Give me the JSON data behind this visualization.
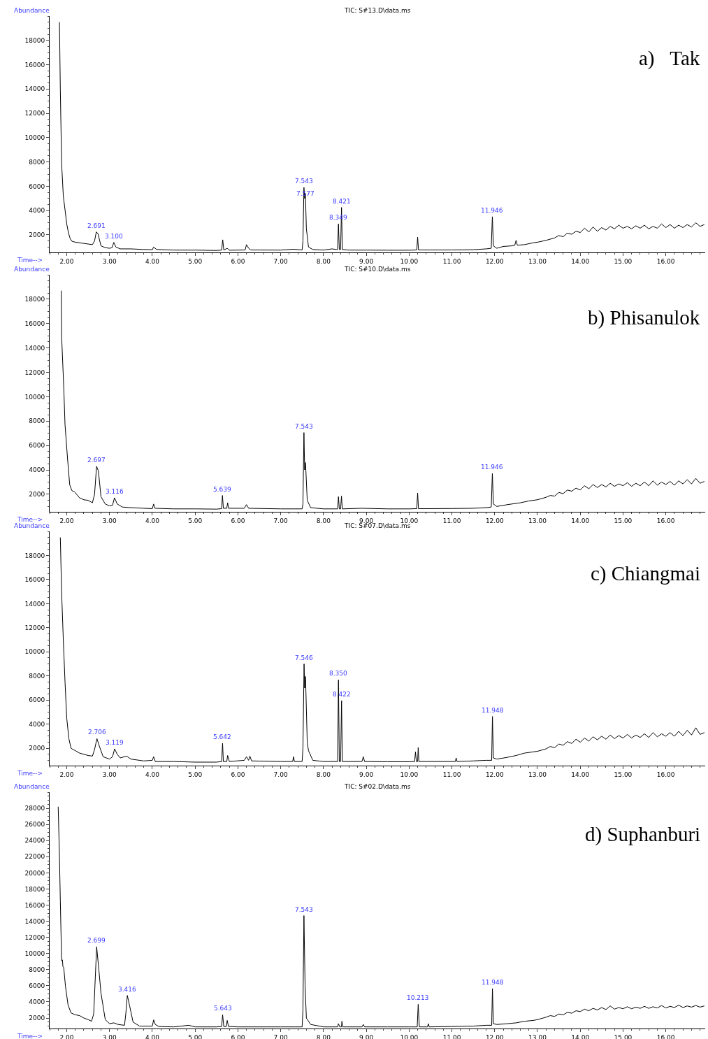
{
  "chart_data": [
    {
      "type": "line",
      "title": "TIC: S#13.D\\data.ms",
      "xlabel": "Time-->",
      "ylabel": "Abundance",
      "color": "#000000",
      "x": [
        1.83,
        1.85,
        1.88,
        1.92,
        1.96,
        2.0,
        2.04,
        2.08,
        2.12,
        2.2,
        2.3,
        2.4,
        2.5,
        2.6,
        2.65,
        2.691,
        2.73,
        2.8,
        2.9,
        3.0,
        3.06,
        3.1,
        3.15,
        3.25,
        3.5,
        3.8,
        4.0,
        4.03,
        4.1,
        4.5,
        5.0,
        5.5,
        5.62,
        5.645,
        5.67,
        5.75,
        5.8,
        6.17,
        6.2,
        6.25,
        6.3,
        7.0,
        7.3,
        7.5,
        7.52,
        7.543,
        7.56,
        7.577,
        7.6,
        7.65,
        7.75,
        8.0,
        8.2,
        8.3,
        8.33,
        8.349,
        8.37,
        8.4,
        8.421,
        8.44,
        8.6,
        9.0,
        9.5,
        10.0,
        10.18,
        10.2,
        10.22,
        10.5,
        11.0,
        11.5,
        11.8,
        11.92,
        11.946,
        11.97,
        12.05,
        12.2,
        12.4,
        12.47,
        12.5,
        12.53,
        12.7,
        12.9,
        13.0,
        13.2,
        13.4,
        13.5,
        13.6,
        13.7,
        13.8,
        13.9,
        14.0,
        14.1,
        14.2,
        14.3,
        14.4,
        14.5,
        14.6,
        14.7,
        14.8,
        14.9,
        15.0,
        15.1,
        15.2,
        15.3,
        15.4,
        15.5,
        15.6,
        15.7,
        15.8,
        15.9,
        16.0,
        16.1,
        16.2,
        16.3,
        16.4,
        16.5,
        16.6,
        16.7,
        16.8,
        16.9
      ],
      "values": [
        19500,
        14000,
        7900,
        5200,
        4070,
        2900,
        2170,
        1700,
        1480,
        1400,
        1350,
        1300,
        1250,
        1200,
        1500,
        2250,
        2100,
        1100,
        950,
        900,
        950,
        1380,
        1000,
        850,
        850,
        800,
        780,
        1000,
        800,
        750,
        750,
        720,
        750,
        1600,
        750,
        900,
        740,
        760,
        1200,
        900,
        760,
        750,
        820,
        760,
        1500,
        5900,
        5000,
        5400,
        2500,
        1000,
        800,
        750,
        850,
        800,
        800,
        2900,
        800,
        800,
        4260,
        800,
        750,
        750,
        740,
        740,
        760,
        1810,
        760,
        760,
        760,
        780,
        850,
        900,
        3500,
        1100,
        900,
        1050,
        1100,
        1150,
        1550,
        1150,
        1200,
        1350,
        1400,
        1550,
        1750,
        1950,
        1850,
        2150,
        2050,
        2300,
        2200,
        2550,
        2250,
        2650,
        2300,
        2600,
        2400,
        2700,
        2500,
        2800,
        2550,
        2700,
        2500,
        2750,
        2550,
        2800,
        2500,
        2700,
        2550,
        2900,
        2600,
        2850,
        2550,
        2800,
        2600,
        2850,
        2650,
        3000,
        2700,
        2850
      ],
      "xlim": [
        1.6,
        16.92
      ],
      "ylim": [
        560,
        20000
      ],
      "xticks": [
        {
          "value": 2,
          "label": "2.00"
        },
        {
          "value": 3,
          "label": "3.00"
        },
        {
          "value": 4,
          "label": "4.00"
        },
        {
          "value": 5,
          "label": "5.00"
        },
        {
          "value": 6,
          "label": "6.00"
        },
        {
          "value": 7,
          "label": "7.00"
        },
        {
          "value": 8,
          "label": "8.00"
        },
        {
          "value": 9,
          "label": "9.00"
        },
        {
          "value": 10,
          "label": "10.00"
        },
        {
          "value": 11,
          "label": "11.00"
        },
        {
          "value": 12,
          "label": "12.00"
        },
        {
          "value": 13,
          "label": "13.00"
        },
        {
          "value": 14,
          "label": "14.00"
        },
        {
          "value": 15,
          "label": "15.00"
        },
        {
          "value": 16,
          "label": "16.00"
        }
      ],
      "yticks": [
        2000,
        4000,
        6000,
        8000,
        10000,
        12000,
        14000,
        16000,
        18000
      ],
      "annotations": [
        "a)   Tak",
        {
          "text": "2.691",
          "x": 2.691,
          "y": 2250
        },
        {
          "text": "3.100",
          "x": 3.1,
          "y": 1380
        },
        {
          "text": "7.543",
          "x": 7.543,
          "y": 5900
        },
        {
          "text": "7.577",
          "x": 7.577,
          "y": 4900
        },
        {
          "text": "8.349",
          "x": 8.349,
          "y": 2900
        },
        {
          "text": "8.421",
          "x": 8.421,
          "y": 4260
        },
        {
          "text": "11.946",
          "x": 11.946,
          "y": 3500
        }
      ]
    },
    {
      "type": "line",
      "title": "TIC: S#10.D\\data.ms",
      "xlabel": "Time-->",
      "ylabel": "Abundance",
      "color": "#000000",
      "x": [
        1.87,
        1.88,
        1.93,
        1.96,
        2.02,
        2.07,
        2.12,
        2.18,
        2.3,
        2.4,
        2.5,
        2.6,
        2.65,
        2.697,
        2.74,
        2.8,
        2.9,
        3.0,
        3.07,
        3.116,
        3.18,
        3.3,
        3.5,
        3.8,
        4.0,
        4.03,
        4.06,
        4.5,
        5.0,
        5.5,
        5.62,
        5.639,
        5.66,
        5.74,
        5.76,
        5.78,
        6.15,
        6.2,
        6.25,
        7.0,
        7.5,
        7.52,
        7.543,
        7.56,
        7.58,
        7.62,
        7.7,
        8.0,
        8.33,
        8.35,
        8.37,
        8.4,
        8.42,
        8.44,
        8.9,
        9.5,
        10.0,
        10.18,
        10.2,
        10.22,
        10.5,
        11.0,
        11.5,
        11.8,
        11.92,
        11.946,
        11.97,
        12.05,
        12.3,
        12.6,
        12.8,
        13.0,
        13.2,
        13.3,
        13.4,
        13.5,
        13.6,
        13.7,
        13.8,
        13.9,
        14.0,
        14.1,
        14.2,
        14.3,
        14.4,
        14.5,
        14.6,
        14.7,
        14.8,
        14.9,
        15.0,
        15.1,
        15.2,
        15.3,
        15.4,
        15.5,
        15.6,
        15.7,
        15.8,
        15.9,
        16.0,
        16.1,
        16.2,
        16.3,
        16.4,
        16.5,
        16.6,
        16.7,
        16.8,
        16.9
      ],
      "values": [
        18700,
        15000,
        10800,
        7700,
        4860,
        2770,
        2300,
        2200,
        1700,
        1550,
        1500,
        1300,
        2000,
        4290,
        3900,
        1800,
        1200,
        1050,
        1100,
        1710,
        1200,
        950,
        900,
        850,
        820,
        1200,
        850,
        800,
        800,
        780,
        820,
        1900,
        850,
        850,
        1300,
        850,
        850,
        1150,
        850,
        800,
        800,
        1200,
        7060,
        4000,
        4600,
        1500,
        900,
        800,
        800,
        1800,
        800,
        800,
        1850,
        800,
        850,
        800,
        800,
        820,
        2100,
        820,
        820,
        830,
        850,
        900,
        950,
        3700,
        1200,
        1000,
        1150,
        1300,
        1450,
        1550,
        1750,
        1900,
        1850,
        2150,
        2050,
        2350,
        2250,
        2500,
        2350,
        2700,
        2450,
        2800,
        2550,
        2800,
        2600,
        2900,
        2650,
        2850,
        2700,
        2950,
        2650,
        2900,
        2700,
        3000,
        2700,
        3100,
        2750,
        3000,
        2800,
        3050,
        2750,
        3100,
        2850,
        3200,
        2850,
        3300,
        2900,
        3050
      ],
      "xlim": [
        1.6,
        16.92
      ],
      "ylim": [
        560,
        20000
      ],
      "xticks": [
        {
          "value": 2,
          "label": "2.00"
        },
        {
          "value": 3,
          "label": "3.00"
        },
        {
          "value": 4,
          "label": "4.00"
        },
        {
          "value": 5,
          "label": "5.00"
        },
        {
          "value": 6,
          "label": "6.00"
        },
        {
          "value": 7,
          "label": "7.00"
        },
        {
          "value": 8,
          "label": "8.00"
        },
        {
          "value": 9,
          "label": "9.00"
        },
        {
          "value": 10,
          "label": "10.00"
        },
        {
          "value": 11,
          "label": "11.00"
        },
        {
          "value": 12,
          "label": "12.00"
        },
        {
          "value": 13,
          "label": "13.00"
        },
        {
          "value": 14,
          "label": "14.00"
        },
        {
          "value": 15,
          "label": "15.00"
        },
        {
          "value": 16,
          "label": "16.00"
        }
      ],
      "yticks": [
        2000,
        4000,
        6000,
        8000,
        10000,
        12000,
        14000,
        16000,
        18000
      ],
      "annotations": [
        "b) Phisanulok",
        {
          "text": "2.697",
          "x": 2.697,
          "y": 4290
        },
        {
          "text": "3.116",
          "x": 3.116,
          "y": 1710
        },
        {
          "text": "5.639",
          "x": 5.639,
          "y": 1900
        },
        {
          "text": "7.543",
          "x": 7.543,
          "y": 7060
        },
        {
          "text": "11.946",
          "x": 11.946,
          "y": 3700
        }
      ]
    },
    {
      "type": "line",
      "title": "TIC: S#07.D\\data.ms",
      "xlabel": "Time-->",
      "ylabel": "Abundance",
      "color": "#000000",
      "x": [
        1.85,
        1.88,
        1.92,
        1.96,
        2.0,
        2.05,
        2.1,
        2.2,
        2.3,
        2.5,
        2.6,
        2.65,
        2.706,
        2.75,
        2.85,
        3.0,
        3.07,
        3.119,
        3.18,
        3.25,
        3.4,
        3.5,
        3.8,
        4.0,
        4.03,
        4.07,
        4.5,
        5.0,
        5.5,
        5.62,
        5.642,
        5.66,
        5.74,
        5.76,
        5.8,
        6.15,
        6.2,
        6.25,
        6.28,
        6.32,
        7.0,
        7.28,
        7.3,
        7.32,
        7.5,
        7.52,
        7.546,
        7.56,
        7.58,
        7.62,
        7.65,
        7.75,
        8.0,
        8.33,
        8.35,
        8.37,
        8.4,
        8.422,
        8.44,
        8.9,
        8.93,
        8.96,
        9.5,
        10.0,
        10.13,
        10.15,
        10.17,
        10.2,
        10.213,
        10.23,
        10.5,
        11.08,
        11.1,
        11.12,
        11.5,
        11.8,
        11.93,
        11.948,
        11.97,
        12.05,
        12.3,
        12.5,
        12.7,
        12.9,
        13.0,
        13.2,
        13.3,
        13.4,
        13.5,
        13.6,
        13.7,
        13.8,
        13.9,
        14.0,
        14.1,
        14.2,
        14.3,
        14.4,
        14.5,
        14.6,
        14.7,
        14.8,
        14.9,
        15.0,
        15.1,
        15.2,
        15.3,
        15.4,
        15.5,
        15.6,
        15.7,
        15.8,
        15.9,
        16.0,
        16.1,
        16.2,
        16.3,
        16.4,
        16.5,
        16.6,
        16.7,
        16.8,
        16.9
      ],
      "values": [
        19500,
        15000,
        11000,
        7500,
        4500,
        2800,
        2000,
        1800,
        1600,
        1400,
        1350,
        1900,
        2800,
        2300,
        1300,
        1100,
        1300,
        1950,
        1500,
        1200,
        1350,
        1100,
        950,
        1000,
        1300,
        900,
        900,
        850,
        850,
        900,
        2420,
        900,
        900,
        1400,
        900,
        1000,
        1300,
        1000,
        1350,
        950,
        900,
        900,
        1300,
        900,
        900,
        2000,
        9000,
        7000,
        7960,
        2500,
        1800,
        1000,
        900,
        900,
        7670,
        900,
        900,
        5950,
        900,
        900,
        1300,
        900,
        880,
        880,
        900,
        1700,
        900,
        900,
        2060,
        900,
        900,
        900,
        1200,
        900,
        950,
        1000,
        1000,
        4640,
        1200,
        1100,
        1250,
        1400,
        1600,
        1700,
        1750,
        1950,
        2150,
        2050,
        2350,
        2250,
        2550,
        2400,
        2750,
        2500,
        2850,
        2600,
        2950,
        2700,
        3000,
        2750,
        3100,
        2800,
        3050,
        2850,
        3150,
        2850,
        3100,
        2900,
        3200,
        2900,
        3300,
        2950,
        3200,
        3000,
        3300,
        3000,
        3400,
        3050,
        3500,
        3100,
        3700,
        3150,
        3300
      ],
      "xlim": [
        1.6,
        16.92
      ],
      "ylim": [
        560,
        20000
      ],
      "xticks": [
        {
          "value": 2,
          "label": "2.00"
        },
        {
          "value": 3,
          "label": "3.00"
        },
        {
          "value": 4,
          "label": "4.00"
        },
        {
          "value": 5,
          "label": "5.00"
        },
        {
          "value": 6,
          "label": "6.00"
        },
        {
          "value": 7,
          "label": "7.00"
        },
        {
          "value": 8,
          "label": "8.00"
        },
        {
          "value": 9,
          "label": "9.00"
        },
        {
          "value": 10,
          "label": "10.00"
        },
        {
          "value": 11,
          "label": "11.00"
        },
        {
          "value": 12,
          "label": "12.00"
        },
        {
          "value": 13,
          "label": "13.00"
        },
        {
          "value": 14,
          "label": "14.00"
        },
        {
          "value": 15,
          "label": "15.00"
        },
        {
          "value": 16,
          "label": "16.00"
        }
      ],
      "yticks": [
        2000,
        4000,
        6000,
        8000,
        10000,
        12000,
        14000,
        16000,
        18000
      ],
      "annotations": [
        "c) Chiangmai",
        {
          "text": "2.706",
          "x": 2.706,
          "y": 2800
        },
        {
          "text": "3.119",
          "x": 3.119,
          "y": 1950
        },
        {
          "text": "5.642",
          "x": 5.642,
          "y": 2420
        },
        {
          "text": "7.546",
          "x": 7.546,
          "y": 9000
        },
        {
          "text": "8.350",
          "x": 8.35,
          "y": 7670
        },
        {
          "text": "8.422",
          "x": 8.422,
          "y": 5950
        },
        {
          "text": "11.948",
          "x": 11.948,
          "y": 4640
        }
      ]
    },
    {
      "type": "line",
      "title": "TIC: S#02.D\\data.ms",
      "xlabel": "Time-->",
      "ylabel": "Abundance",
      "color": "#000000",
      "x": [
        1.8,
        1.83,
        1.85,
        1.88,
        1.9,
        1.91,
        1.93,
        1.97,
        2.03,
        2.1,
        2.2,
        2.3,
        2.4,
        2.5,
        2.58,
        2.63,
        2.699,
        2.75,
        2.8,
        2.9,
        3.0,
        3.1,
        3.2,
        3.35,
        3.38,
        3.416,
        3.47,
        3.55,
        3.7,
        4.0,
        4.03,
        4.07,
        4.15,
        4.5,
        4.85,
        5.0,
        5.5,
        5.62,
        5.643,
        5.67,
        5.73,
        5.75,
        5.78,
        6.0,
        7.0,
        7.5,
        7.52,
        7.543,
        7.57,
        7.6,
        7.7,
        8.0,
        8.33,
        8.35,
        8.38,
        8.42,
        8.43,
        8.45,
        8.9,
        8.93,
        8.96,
        9.5,
        10.0,
        10.19,
        10.213,
        10.24,
        10.43,
        10.45,
        10.47,
        11.0,
        11.5,
        11.8,
        11.93,
        11.948,
        11.97,
        12.05,
        12.3,
        12.5,
        12.7,
        12.9,
        13.0,
        13.2,
        13.3,
        13.4,
        13.5,
        13.6,
        13.7,
        13.8,
        13.9,
        14.0,
        14.1,
        14.2,
        14.3,
        14.4,
        14.5,
        14.6,
        14.7,
        14.8,
        14.9,
        15.0,
        15.1,
        15.2,
        15.3,
        15.4,
        15.5,
        15.6,
        15.7,
        15.8,
        15.9,
        16.0,
        16.1,
        16.2,
        16.3,
        16.4,
        16.5,
        16.6,
        16.7,
        16.8,
        16.9
      ],
      "values": [
        28200,
        22000,
        16600,
        9100,
        9200,
        8400,
        8250,
        5950,
        3640,
        2630,
        2400,
        2300,
        2000,
        1800,
        1600,
        2500,
        10840,
        8000,
        5100,
        1800,
        1300,
        1400,
        1200,
        1100,
        2500,
        4800,
        3500,
        1500,
        1000,
        1000,
        1770,
        1200,
        950,
        900,
        1100,
        900,
        900,
        950,
        2400,
        950,
        950,
        1700,
        950,
        900,
        900,
        900,
        3000,
        14700,
        6000,
        2000,
        1200,
        900,
        900,
        1300,
        900,
        900,
        1600,
        900,
        900,
        1200,
        900,
        900,
        900,
        900,
        3700,
        900,
        900,
        1300,
        900,
        950,
        1000,
        1100,
        1100,
        5650,
        1300,
        1200,
        1300,
        1400,
        1600,
        1700,
        1800,
        2100,
        2300,
        2200,
        2500,
        2400,
        2700,
        2600,
        2900,
        2800,
        3100,
        2900,
        3200,
        3000,
        3300,
        3050,
        3500,
        3100,
        3300,
        3150,
        3400,
        3150,
        3350,
        3200,
        3450,
        3200,
        3400,
        3250,
        3550,
        3250,
        3450,
        3300,
        3600,
        3300,
        3500,
        3350,
        3550,
        3350,
        3500
      ],
      "xlim": [
        1.6,
        16.92
      ],
      "ylim": [
        700,
        30000
      ],
      "xticks": [
        {
          "value": 2,
          "label": "2.00"
        },
        {
          "value": 3,
          "label": "3.00"
        },
        {
          "value": 4,
          "label": "4.00"
        },
        {
          "value": 5,
          "label": "5.00"
        },
        {
          "value": 6,
          "label": "6.00"
        },
        {
          "value": 7,
          "label": "7.00"
        },
        {
          "value": 8,
          "label": "8.00"
        },
        {
          "value": 9,
          "label": "9.00"
        },
        {
          "value": 10,
          "label": "10.00"
        },
        {
          "value": 11,
          "label": "11.00"
        },
        {
          "value": 12,
          "label": "12.00"
        },
        {
          "value": 13,
          "label": "13.00"
        },
        {
          "value": 14,
          "label": "14.00"
        },
        {
          "value": 15,
          "label": "15.00"
        },
        {
          "value": 16,
          "label": "16.00"
        }
      ],
      "yticks": [
        2000,
        4000,
        6000,
        8000,
        10000,
        12000,
        14000,
        16000,
        18000,
        20000,
        22000,
        24000,
        26000,
        28000
      ],
      "annotations": [
        "d) Suphanburi",
        {
          "text": "2.699",
          "x": 2.699,
          "y": 10840
        },
        {
          "text": "3.416",
          "x": 3.416,
          "y": 4800
        },
        {
          "text": "5.643",
          "x": 5.643,
          "y": 2400
        },
        {
          "text": "7.543",
          "x": 7.543,
          "y": 14700
        },
        {
          "text": "10.213",
          "x": 10.213,
          "y": 3700
        },
        {
          "text": "11.948",
          "x": 11.948,
          "y": 5650
        }
      ]
    }
  ]
}
